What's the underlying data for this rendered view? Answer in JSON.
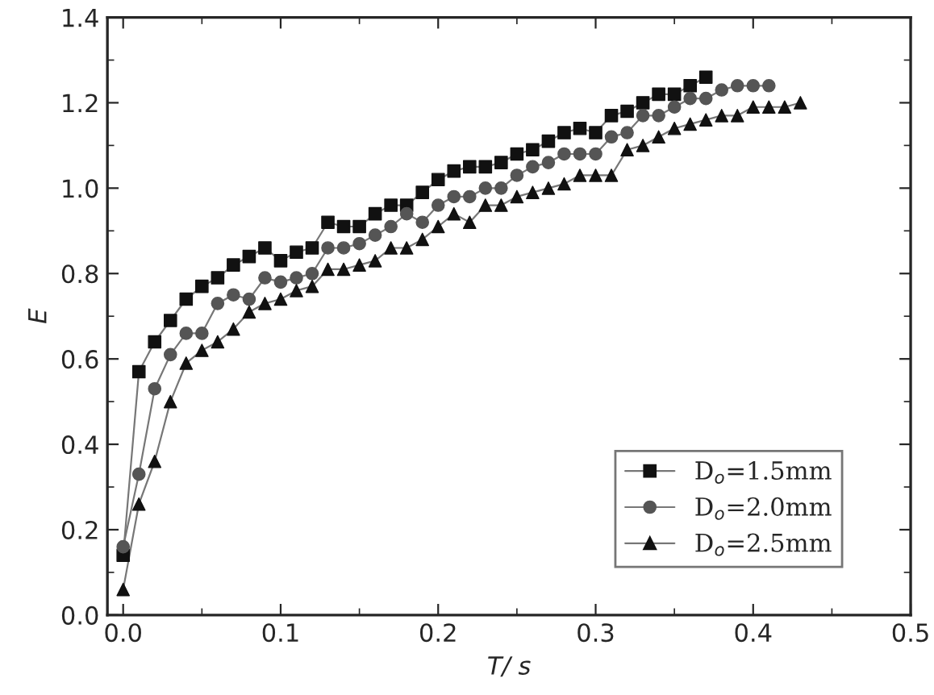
{
  "chart_data": {
    "type": "line",
    "xlabel": "T/ s",
    "ylabel": "E",
    "xlim": [
      -0.01,
      0.5
    ],
    "ylim": [
      0.0,
      1.4
    ],
    "xticks": [
      {
        "value": 0.0,
        "label": "0.0"
      },
      {
        "value": 0.1,
        "label": "0.1"
      },
      {
        "value": 0.2,
        "label": "0.2"
      },
      {
        "value": 0.3,
        "label": "0.3"
      },
      {
        "value": 0.4,
        "label": "0.4"
      },
      {
        "value": 0.5,
        "label": "0.5"
      }
    ],
    "yticks": [
      {
        "value": 0.0,
        "label": "0.0"
      },
      {
        "value": 0.2,
        "label": "0.2"
      },
      {
        "value": 0.4,
        "label": "0.4"
      },
      {
        "value": 0.6,
        "label": "0.6"
      },
      {
        "value": 0.8,
        "label": "0.8"
      },
      {
        "value": 1.0,
        "label": "1.0"
      },
      {
        "value": 1.2,
        "label": "1.2"
      },
      {
        "value": 1.4,
        "label": "1.4"
      }
    ],
    "grid": false,
    "legend": "bottom right",
    "line_style": "solid",
    "series": [
      {
        "name": "D$_{o}$=1.5mm",
        "color": "#111111",
        "marker": "square",
        "x": [
          0.0,
          0.01,
          0.02,
          0.03,
          0.04,
          0.05,
          0.06,
          0.07,
          0.08,
          0.09,
          0.1,
          0.11,
          0.12,
          0.13,
          0.14,
          0.15,
          0.16,
          0.17,
          0.18,
          0.19,
          0.2,
          0.21,
          0.22,
          0.23,
          0.24,
          0.25,
          0.26,
          0.27,
          0.28,
          0.29,
          0.3,
          0.31,
          0.32,
          0.33,
          0.34,
          0.35,
          0.36,
          0.37
        ],
        "values": [
          0.14,
          0.57,
          0.64,
          0.69,
          0.74,
          0.77,
          0.79,
          0.82,
          0.84,
          0.86,
          0.83,
          0.85,
          0.86,
          0.92,
          0.91,
          0.91,
          0.94,
          0.96,
          0.96,
          0.99,
          1.02,
          1.04,
          1.05,
          1.05,
          1.06,
          1.08,
          1.09,
          1.11,
          1.13,
          1.14,
          1.13,
          1.17,
          1.18,
          1.2,
          1.22,
          1.22,
          1.24,
          1.26
        ]
      },
      {
        "name": "D$_{o}$=2.0mm",
        "color": "#555555",
        "marker": "circle",
        "x": [
          0.0,
          0.01,
          0.02,
          0.03,
          0.04,
          0.05,
          0.06,
          0.07,
          0.08,
          0.09,
          0.1,
          0.11,
          0.12,
          0.13,
          0.14,
          0.15,
          0.16,
          0.17,
          0.18,
          0.19,
          0.2,
          0.21,
          0.22,
          0.23,
          0.24,
          0.25,
          0.26,
          0.27,
          0.28,
          0.29,
          0.3,
          0.31,
          0.32,
          0.33,
          0.34,
          0.35,
          0.36,
          0.37,
          0.38,
          0.39,
          0.4,
          0.41
        ],
        "values": [
          0.16,
          0.33,
          0.53,
          0.61,
          0.66,
          0.66,
          0.73,
          0.75,
          0.74,
          0.79,
          0.78,
          0.79,
          0.8,
          0.86,
          0.86,
          0.87,
          0.89,
          0.91,
          0.94,
          0.92,
          0.96,
          0.98,
          0.98,
          1.0,
          1.0,
          1.03,
          1.05,
          1.06,
          1.08,
          1.08,
          1.08,
          1.12,
          1.13,
          1.17,
          1.17,
          1.19,
          1.21,
          1.21,
          1.23,
          1.24,
          1.24,
          1.24
        ]
      },
      {
        "name": "D$_{o}$=2.5mm",
        "color": "#111111",
        "marker": "triangle",
        "x": [
          0.0,
          0.01,
          0.02,
          0.03,
          0.04,
          0.05,
          0.06,
          0.07,
          0.08,
          0.09,
          0.1,
          0.11,
          0.12,
          0.13,
          0.14,
          0.15,
          0.16,
          0.17,
          0.18,
          0.19,
          0.2,
          0.21,
          0.22,
          0.23,
          0.24,
          0.25,
          0.26,
          0.27,
          0.28,
          0.29,
          0.3,
          0.31,
          0.32,
          0.33,
          0.34,
          0.35,
          0.36,
          0.37,
          0.38,
          0.39,
          0.4,
          0.41,
          0.42,
          0.43
        ],
        "values": [
          0.06,
          0.26,
          0.36,
          0.5,
          0.59,
          0.62,
          0.64,
          0.67,
          0.71,
          0.73,
          0.74,
          0.76,
          0.77,
          0.81,
          0.81,
          0.82,
          0.83,
          0.86,
          0.86,
          0.88,
          0.91,
          0.94,
          0.92,
          0.96,
          0.96,
          0.98,
          0.99,
          1.0,
          1.01,
          1.03,
          1.03,
          1.03,
          1.09,
          1.1,
          1.12,
          1.14,
          1.15,
          1.16,
          1.17,
          1.17,
          1.19,
          1.19,
          1.19,
          1.2
        ]
      }
    ]
  }
}
